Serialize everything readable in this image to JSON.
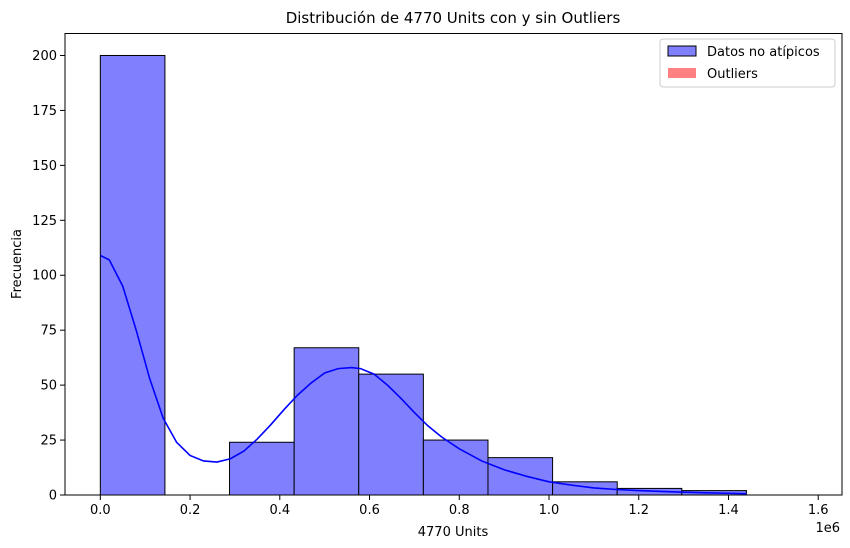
{
  "chart_data": {
    "type": "bar",
    "subtype": "histogram-with-kde",
    "title": "Distribución de 4770 Units con y sin Outliers",
    "xlabel": "4770 Units",
    "ylabel": "Frecuencia",
    "x_offset_label": "1e6",
    "xlim": [
      -0.0787,
      1.653
    ],
    "ylim": [
      0,
      210
    ],
    "x_ticks": [
      0.0,
      0.2,
      0.4,
      0.6,
      0.8,
      1.0,
      1.2,
      1.4,
      1.6
    ],
    "x_tick_labels": [
      "0.0",
      "0.2",
      "0.4",
      "0.6",
      "0.8",
      "1.0",
      "1.2",
      "1.4",
      "1.6"
    ],
    "y_ticks": [
      0,
      25,
      50,
      75,
      100,
      125,
      150,
      175,
      200
    ],
    "y_tick_labels": [
      "0",
      "25",
      "50",
      "75",
      "100",
      "125",
      "150",
      "175",
      "200"
    ],
    "bin_edges": [
      0.0,
      0.144,
      0.288,
      0.432,
      0.576,
      0.72,
      0.864,
      1.008,
      1.152,
      1.296,
      1.44
    ],
    "series": [
      {
        "name": "Datos no atípicos",
        "kind": "histogram",
        "color": "#8080ff",
        "edge_color": "#000000",
        "values": [
          200,
          0,
          24,
          67,
          55,
          25,
          17,
          6,
          3,
          2
        ]
      },
      {
        "name": "Outliers",
        "kind": "histogram",
        "color": "#ff8080",
        "values": []
      },
      {
        "name": "KDE",
        "kind": "line",
        "color": "#0000ff",
        "x": [
          0.0,
          0.02,
          0.05,
          0.08,
          0.11,
          0.14,
          0.17,
          0.2,
          0.23,
          0.26,
          0.29,
          0.32,
          0.35,
          0.38,
          0.41,
          0.44,
          0.47,
          0.5,
          0.53,
          0.56,
          0.58,
          0.61,
          0.64,
          0.67,
          0.7,
          0.73,
          0.76,
          0.8,
          0.85,
          0.9,
          0.95,
          1.0,
          1.05,
          1.1,
          1.15,
          1.2,
          1.25,
          1.3,
          1.35,
          1.4,
          1.44
        ],
        "y": [
          109,
          107,
          95,
          75,
          53,
          35,
          24,
          18,
          15.5,
          15,
          16.5,
          20,
          25.5,
          32,
          39,
          45.5,
          51,
          55.5,
          57.5,
          58,
          57.5,
          55,
          50,
          44,
          37.5,
          31.5,
          26.5,
          21,
          15.5,
          11.5,
          8.5,
          6,
          4.5,
          3.2,
          2.5,
          2,
          1.6,
          1.3,
          1,
          0.8,
          0.6
        ]
      }
    ],
    "legend": {
      "position": "top-right",
      "entries": [
        "Datos no atípicos",
        "Outliers"
      ]
    }
  }
}
